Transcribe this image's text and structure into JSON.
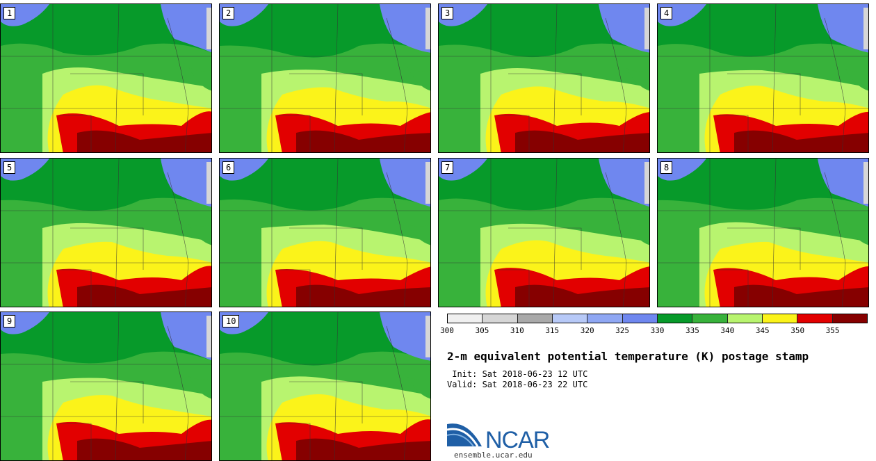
{
  "panels": [
    {
      "label": "1"
    },
    {
      "label": "2"
    },
    {
      "label": "3"
    },
    {
      "label": "4"
    },
    {
      "label": "5"
    },
    {
      "label": "6"
    },
    {
      "label": "7"
    },
    {
      "label": "8"
    },
    {
      "label": "9"
    },
    {
      "label": "10"
    }
  ],
  "colorbar": {
    "colors": [
      "#f0f0f0",
      "#d6d6d6",
      "#a9a9a9",
      "#b7c9f7",
      "#8fa7f3",
      "#6f87ef",
      "#079a2a",
      "#38b23b",
      "#b8f46f",
      "#fbf31a",
      "#e20000",
      "#860000"
    ],
    "ticks": [
      "300",
      "305",
      "310",
      "315",
      "320",
      "325",
      "330",
      "335",
      "340",
      "345",
      "350",
      "355"
    ]
  },
  "title": "2-m equivalent potential temperature (K) postage stamp",
  "init_line": " Init: Sat 2018-06-23 12 UTC",
  "valid_line": "Valid: Sat 2018-06-23 22 UTC",
  "logo": {
    "text": "NCAR",
    "url": "ensemble.ucar.edu"
  }
}
